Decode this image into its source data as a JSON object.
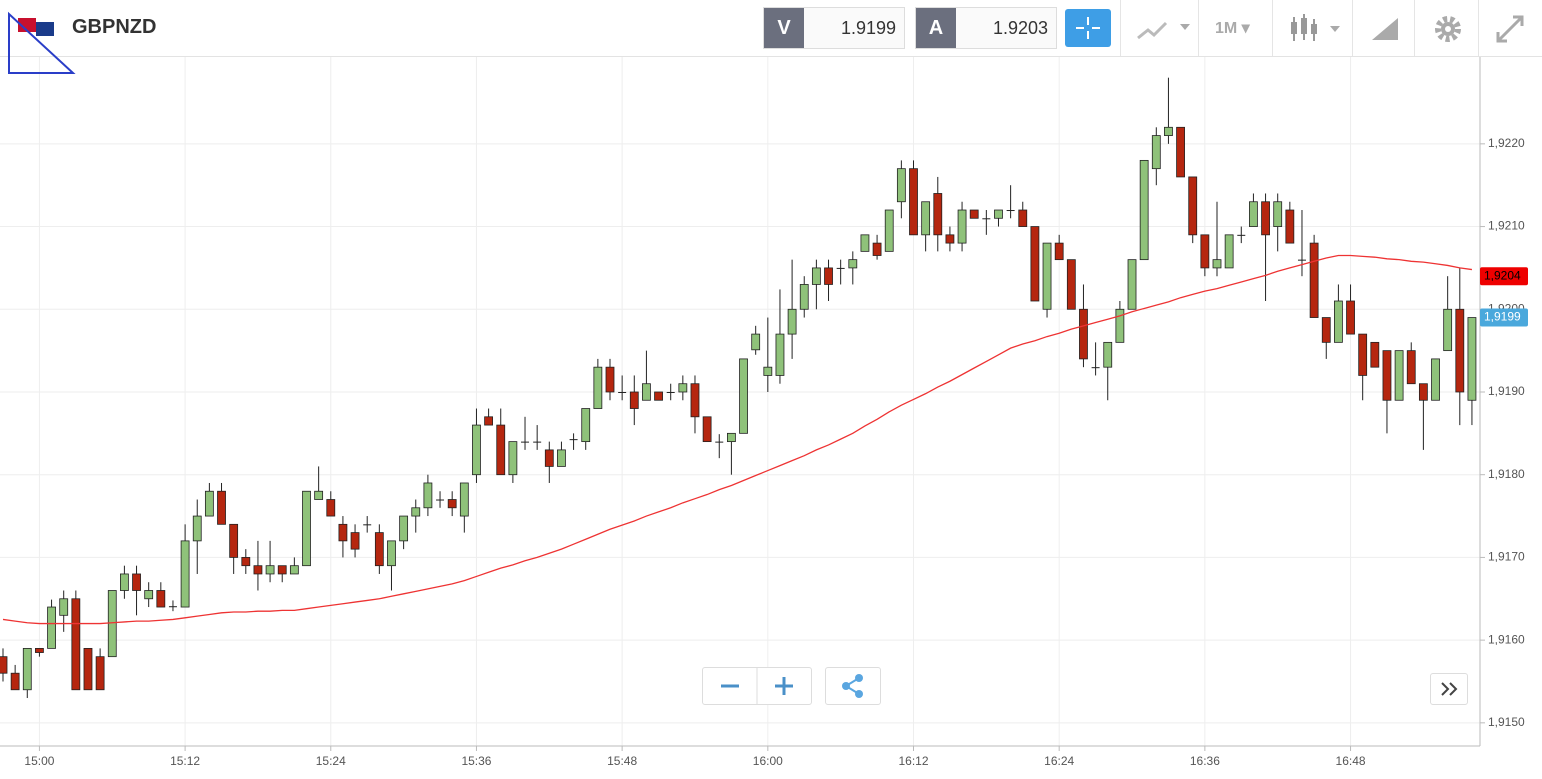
{
  "toolbar": {
    "symbol": "GBPNZD",
    "bid_label": "V",
    "bid": 1.9199,
    "ask_label": "A",
    "ask": 1.9203,
    "timeframe": "1M"
  },
  "chart_data": {
    "type": "candlestick",
    "categories": [
      null,
      null,
      null,
      "15:00",
      null,
      null,
      null,
      null,
      null,
      null,
      null,
      null,
      null,
      null,
      null,
      "15:12",
      null,
      null,
      null,
      null,
      null,
      null,
      null,
      null,
      null,
      null,
      null,
      "15:24",
      null,
      null,
      null,
      null,
      null,
      null,
      null,
      null,
      null,
      null,
      null,
      "15:36",
      null,
      null,
      null,
      null,
      null,
      null,
      null,
      null,
      null,
      null,
      null,
      "15:48",
      null,
      null,
      null,
      null,
      null,
      null,
      null,
      null,
      null,
      null,
      null,
      "16:00",
      null,
      null,
      null,
      null,
      null,
      null,
      null,
      null,
      null,
      null,
      null,
      "16:12",
      null,
      null,
      null,
      null,
      null,
      null,
      null,
      null,
      null,
      null,
      null,
      "16:24",
      null,
      null,
      null,
      null,
      null,
      null,
      null,
      null,
      null,
      null,
      null,
      "16:36",
      null,
      null,
      null,
      null,
      null,
      null,
      null,
      null,
      null,
      null,
      null,
      "16:48",
      null,
      null,
      null,
      null,
      null,
      null,
      null,
      null,
      null,
      null
    ],
    "open": [
      1.9158,
      1.9156,
      1.9154,
      1.9159,
      1.9159,
      1.9163,
      1.9165,
      1.9159,
      1.9158,
      1.9158,
      1.9166,
      1.9168,
      1.9165,
      1.9166,
      1.91641,
      1.9164,
      1.9172,
      1.9175,
      1.9178,
      1.9174,
      1.917,
      1.9169,
      1.9168,
      1.9169,
      1.9168,
      1.9169,
      1.9177,
      1.9177,
      1.9174,
      1.9173,
      1.9174,
      1.9173,
      1.9169,
      1.9172,
      1.9175,
      1.9176,
      1.9177,
      1.9177,
      1.9175,
      1.918,
      1.9187,
      1.9186,
      1.918,
      1.9184,
      1.9184,
      1.9183,
      1.9181,
      1.91843,
      1.9184,
      1.9188,
      1.9193,
      1.919,
      1.919,
      1.9189,
      1.919,
      1.919,
      1.919,
      1.9191,
      1.9187,
      1.9184,
      1.9184,
      1.9185,
      1.91951,
      1.9192,
      1.9192,
      1.9197,
      1.92,
      1.9203,
      1.9205,
      1.9205,
      1.9205,
      1.9207,
      1.9208,
      1.9207,
      1.9213,
      1.9217,
      1.9209,
      1.9214,
      1.9209,
      1.9208,
      1.9212,
      1.9211,
      1.9211,
      1.9212,
      1.9212,
      1.921,
      1.92,
      1.9208,
      1.9206,
      1.92,
      1.9193,
      1.9193,
      1.9196,
      1.92,
      1.9206,
      1.9217,
      1.9221,
      1.9222,
      1.9216,
      1.9209,
      1.9205,
      1.9205,
      1.9209,
      1.921,
      1.9213,
      1.921,
      1.9212,
      1.9206,
      1.9208,
      1.9199,
      1.9196,
      1.9201,
      1.9197,
      1.9196,
      1.9195,
      1.9189,
      1.9195,
      1.9191,
      1.9189,
      1.9195,
      1.92,
      1.9189
    ],
    "high": [
      1.9159,
      1.9157,
      1.9159,
      1.9159,
      1.91649,
      1.9166,
      1.9166,
      1.9159,
      1.9159,
      1.9166,
      1.9169,
      1.9169,
      1.9167,
      1.9167,
      1.91648,
      1.9174,
      1.9177,
      1.9179,
      1.9179,
      1.9174,
      1.9171,
      1.9172,
      1.9172,
      1.9169,
      1.917,
      1.9178,
      1.9181,
      1.9178,
      1.9175,
      1.9174,
      1.9175,
      1.9174,
      1.9172,
      1.9175,
      1.9177,
      1.918,
      1.9178,
      1.9178,
      1.9179,
      1.9188,
      1.9188,
      1.9188,
      1.9184,
      1.9187,
      1.9186,
      1.9184,
      1.9184,
      1.9185,
      1.9188,
      1.9194,
      1.9194,
      1.9192,
      1.9192,
      1.9195,
      1.919,
      1.9191,
      1.9192,
      1.9192,
      1.9187,
      1.91849,
      1.9185,
      1.9194,
      1.9198,
      1.9199,
      1.92024,
      1.9206,
      1.9204,
      1.9206,
      1.9206,
      1.9206,
      1.9207,
      1.9209,
      1.9209,
      1.9212,
      1.9218,
      1.9218,
      1.9213,
      1.9216,
      1.921,
      1.9213,
      1.9212,
      1.9212,
      1.9212,
      1.9215,
      1.9213,
      1.921,
      1.9208,
      1.9209,
      1.9206,
      1.9203,
      1.9196,
      1.9196,
      1.9201,
      1.9206,
      1.9218,
      1.9222,
      1.9228,
      1.9222,
      1.9216,
      1.9209,
      1.9213,
      1.9209,
      1.921,
      1.9214,
      1.9214,
      1.9214,
      1.9213,
      1.9212,
      1.9209,
      1.9199,
      1.9203,
      1.9203,
      1.9197,
      1.9196,
      1.9195,
      1.9195,
      1.9196,
      1.9191,
      1.9194,
      1.9204,
      1.9205,
      1.9199
    ],
    "low": [
      1.9155,
      1.9154,
      1.9153,
      1.9158,
      1.9159,
      1.9161,
      1.9154,
      1.9154,
      1.9154,
      1.9158,
      1.9165,
      1.9163,
      1.9164,
      1.9164,
      1.91635,
      1.9164,
      1.9168,
      1.9175,
      1.9174,
      1.9168,
      1.9168,
      1.9166,
      1.9167,
      1.9167,
      1.9168,
      1.9169,
      1.9177,
      1.9175,
      1.917,
      1.917,
      1.9173,
      1.9168,
      1.9166,
      1.9171,
      1.9173,
      1.9175,
      1.9176,
      1.9175,
      1.9173,
      1.9179,
      1.9186,
      1.918,
      1.9179,
      1.9183,
      1.9183,
      1.9179,
      1.9181,
      1.9183,
      1.9183,
      1.9188,
      1.9189,
      1.9189,
      1.9186,
      1.9189,
      1.9189,
      1.9189,
      1.9189,
      1.9185,
      1.9184,
      1.9182,
      1.918,
      1.9185,
      1.91945,
      1.919,
      1.9191,
      1.9194,
      1.9199,
      1.92,
      1.9201,
      1.9203,
      1.9203,
      1.9207,
      1.9206,
      1.9207,
      1.9211,
      1.9209,
      1.9207,
      1.9207,
      1.9207,
      1.9207,
      1.9211,
      1.9209,
      1.921,
      1.9211,
      1.921,
      1.9201,
      1.9199,
      1.9206,
      1.92,
      1.9193,
      1.9192,
      1.9189,
      1.9196,
      1.92,
      1.9206,
      1.9215,
      1.922,
      1.9216,
      1.9208,
      1.9204,
      1.9204,
      1.9205,
      1.9208,
      1.921,
      1.9201,
      1.9207,
      1.9208,
      1.9204,
      1.9199,
      1.9194,
      1.9196,
      1.9197,
      1.9189,
      1.9193,
      1.9185,
      1.9189,
      1.9191,
      1.9183,
      1.9189,
      1.9195,
      1.9186,
      1.9186
    ],
    "close": [
      1.9156,
      1.9154,
      1.9159,
      1.91585,
      1.9164,
      1.9165,
      1.9154,
      1.9154,
      1.9154,
      1.9166,
      1.9168,
      1.9166,
      1.9166,
      1.9164,
      1.91641,
      1.9172,
      1.9175,
      1.9178,
      1.9174,
      1.917,
      1.9169,
      1.9168,
      1.9169,
      1.9168,
      1.9169,
      1.9178,
      1.9178,
      1.9175,
      1.9172,
      1.9171,
      1.9174,
      1.9169,
      1.9172,
      1.9175,
      1.9176,
      1.9179,
      1.9177,
      1.9176,
      1.9179,
      1.9186,
      1.9186,
      1.918,
      1.9184,
      1.9184,
      1.9184,
      1.9181,
      1.9183,
      1.91843,
      1.9188,
      1.9193,
      1.919,
      1.919,
      1.9188,
      1.9191,
      1.9189,
      1.919,
      1.9191,
      1.9187,
      1.9184,
      1.9184,
      1.9185,
      1.9194,
      1.9197,
      1.9193,
      1.9197,
      1.92,
      1.9203,
      1.9205,
      1.9203,
      1.9205,
      1.9206,
      1.9209,
      1.92065,
      1.9212,
      1.9217,
      1.9209,
      1.9213,
      1.9209,
      1.9208,
      1.9212,
      1.9211,
      1.9211,
      1.9212,
      1.9212,
      1.921,
      1.9201,
      1.9208,
      1.9206,
      1.92,
      1.9194,
      1.9193,
      1.9196,
      1.92,
      1.9206,
      1.9218,
      1.9221,
      1.9222,
      1.9216,
      1.9209,
      1.9205,
      1.9206,
      1.9209,
      1.9209,
      1.9213,
      1.9209,
      1.9213,
      1.9208,
      1.9206,
      1.9199,
      1.9196,
      1.9201,
      1.9197,
      1.9192,
      1.9193,
      1.9189,
      1.9195,
      1.9191,
      1.9189,
      1.9194,
      1.92,
      1.919,
      1.9199
    ],
    "up_color": "#8fc27a",
    "down_color": "#b5260f",
    "ma": {
      "color": "#ee3333",
      "values": [
        1.91625,
        1.91623,
        1.91621,
        1.9162,
        1.9162,
        1.9162,
        1.9162,
        1.9162,
        1.9162,
        1.91621,
        1.91622,
        1.91623,
        1.91623,
        1.91624,
        1.91625,
        1.91627,
        1.91629,
        1.91631,
        1.91633,
        1.91634,
        1.91634,
        1.91635,
        1.91635,
        1.91636,
        1.91636,
        1.91638,
        1.9164,
        1.91642,
        1.91644,
        1.91646,
        1.91648,
        1.9165,
        1.91653,
        1.91656,
        1.91659,
        1.91662,
        1.91665,
        1.91668,
        1.91672,
        1.91677,
        1.91682,
        1.91687,
        1.91691,
        1.91696,
        1.917,
        1.91705,
        1.9171,
        1.91716,
        1.91722,
        1.91728,
        1.91734,
        1.91739,
        1.91744,
        1.9175,
        1.91755,
        1.9176,
        1.91766,
        1.91771,
        1.91776,
        1.91782,
        1.91787,
        1.91793,
        1.91799,
        1.91805,
        1.91811,
        1.91817,
        1.91823,
        1.9183,
        1.91836,
        1.91843,
        1.9185,
        1.91859,
        1.91867,
        1.91876,
        1.91884,
        1.91891,
        1.91898,
        1.91906,
        1.91913,
        1.91921,
        1.91929,
        1.91937,
        1.91945,
        1.91953,
        1.91958,
        1.91962,
        1.91967,
        1.91971,
        1.91976,
        1.9198,
        1.91984,
        1.91988,
        1.91992,
        1.91997,
        1.92001,
        1.92005,
        1.92009,
        1.92014,
        1.92018,
        1.92022,
        1.92025,
        1.92029,
        1.92033,
        1.92037,
        1.92041,
        1.92046,
        1.9205,
        1.92054,
        1.92058,
        1.92062,
        1.92065,
        1.92065,
        1.92064,
        1.92063,
        1.92061,
        1.9206,
        1.92058,
        1.92057,
        1.92055,
        1.92053,
        1.9205,
        1.92048
      ]
    },
    "ylim": [
      1.91472,
      1.92305
    ],
    "yticks": [
      {
        "value": 1.915,
        "label": "1,9150"
      },
      {
        "value": 1.916,
        "label": "1,9160"
      },
      {
        "value": 1.917,
        "label": "1,9170"
      },
      {
        "value": 1.918,
        "label": "1,9180"
      },
      {
        "value": 1.919,
        "label": "1,9190"
      },
      {
        "value": 1.92,
        "label": "1,9200"
      },
      {
        "value": 1.921,
        "label": "1,9210"
      },
      {
        "value": 1.922,
        "label": "1,9220"
      }
    ],
    "price_labels": [
      {
        "value": 1.9204,
        "label": "1,9204",
        "color": "#ee0000"
      },
      {
        "value": 1.9199,
        "label": "1,9199",
        "color": "#4aa8dc"
      }
    ],
    "grid": true
  }
}
